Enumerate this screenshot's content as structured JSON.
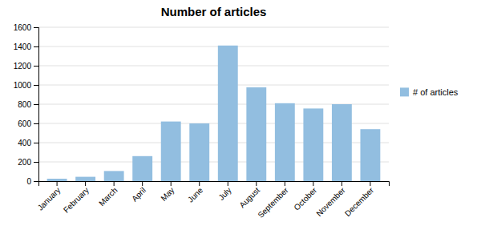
{
  "chart_data": {
    "type": "bar",
    "title": "Number of articles",
    "categories": [
      "January",
      "February",
      "March",
      "April",
      "May",
      "June",
      "July",
      "August",
      "September",
      "October",
      "November",
      "December"
    ],
    "series": [
      {
        "name": "# of articles",
        "color": "#92BEE0",
        "values": [
          25,
          45,
          105,
          260,
          620,
          600,
          1410,
          975,
          810,
          755,
          800,
          540
        ]
      }
    ],
    "ylim": [
      0,
      1600
    ],
    "yticks": [
      0,
      200,
      400,
      600,
      800,
      1000,
      1200,
      1400,
      1600
    ],
    "grid": true,
    "legend": "right"
  }
}
